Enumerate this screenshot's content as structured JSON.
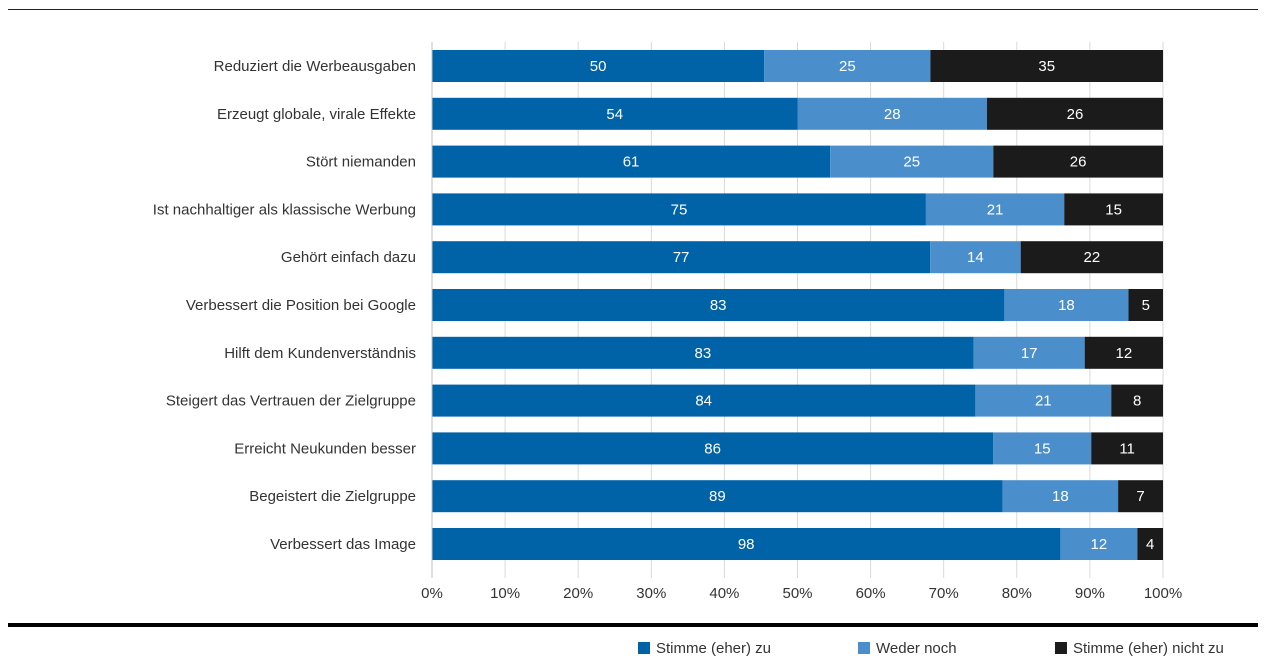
{
  "chart_data": {
    "type": "bar",
    "orientation": "horizontal",
    "stacked": "percent",
    "categories": [
      "Reduziert die Werbeausgaben",
      "Erzeugt globale, virale Effekte",
      "Stört niemanden",
      "Ist nachhaltiger als klassische Werbung",
      "Gehört einfach dazu",
      "Verbessert die Position bei Google",
      "Hilft dem Kundenverständnis",
      "Steigert das Vertrauen der Zielgruppe",
      "Erreicht Neukunden besser",
      "Begeistert die Zielgruppe",
      "Verbessert das Image"
    ],
    "series": [
      {
        "name": "Stimme (eher) zu",
        "color": "#0062a7",
        "values": [
          50,
          54,
          61,
          75,
          77,
          83,
          83,
          84,
          86,
          89,
          98
        ]
      },
      {
        "name": "Weder noch",
        "color": "#4a8fcc",
        "values": [
          25,
          28,
          25,
          21,
          14,
          18,
          17,
          21,
          15,
          18,
          12
        ]
      },
      {
        "name": "Stimme (eher) nicht zu",
        "color": "#1b1b1b",
        "values": [
          35,
          26,
          26,
          15,
          22,
          5,
          12,
          8,
          11,
          7,
          4
        ]
      }
    ],
    "xlim": [
      0,
      100
    ],
    "xticks": [
      "0%",
      "10%",
      "20%",
      "30%",
      "40%",
      "50%",
      "60%",
      "70%",
      "80%",
      "90%",
      "100%"
    ],
    "grid": true,
    "legend_position": "bottom-right"
  }
}
